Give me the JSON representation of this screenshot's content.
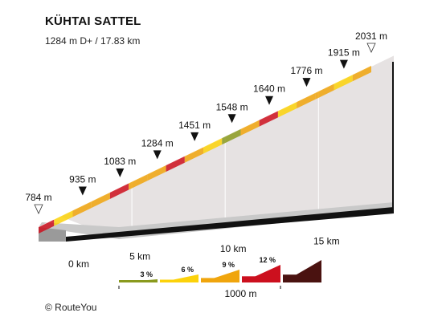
{
  "chart_data": {
    "type": "area",
    "title": "KÜHTAI SATTEL",
    "subtitle": "1284 m D+ / 17.83 km",
    "xlabel": "",
    "ylabel": "",
    "xlim": [
      0,
      17.83
    ],
    "ylim": [
      784,
      2031
    ],
    "distance_unit": "km",
    "elevation_unit": "m",
    "distance_ticks": [
      {
        "km": 0,
        "label": "0 km"
      },
      {
        "km": 5,
        "label": "5 km"
      },
      {
        "km": 10,
        "label": "10 km"
      },
      {
        "km": 15,
        "label": "15 km"
      }
    ],
    "segments": [
      {
        "km_start": 0,
        "km_end": 0.83,
        "color_class": "red"
      },
      {
        "km_start": 0.83,
        "km_end": 1.83,
        "color_class": "yellow"
      },
      {
        "km_start": 1.83,
        "km_end": 2.83,
        "color_class": "orange"
      },
      {
        "km_start": 2.83,
        "km_end": 3.83,
        "color_class": "orange"
      },
      {
        "km_start": 3.83,
        "km_end": 4.83,
        "color_class": "red"
      },
      {
        "km_start": 4.83,
        "km_end": 5.83,
        "color_class": "orange"
      },
      {
        "km_start": 5.83,
        "km_end": 6.83,
        "color_class": "orange"
      },
      {
        "km_start": 6.83,
        "km_end": 7.83,
        "color_class": "red"
      },
      {
        "km_start": 7.83,
        "km_end": 8.83,
        "color_class": "orange"
      },
      {
        "km_start": 8.83,
        "km_end": 9.83,
        "color_class": "yellow"
      },
      {
        "km_start": 9.83,
        "km_end": 10.83,
        "color_class": "green"
      },
      {
        "km_start": 10.83,
        "km_end": 11.83,
        "color_class": "orange"
      },
      {
        "km_start": 11.83,
        "km_end": 12.83,
        "color_class": "red"
      },
      {
        "km_start": 12.83,
        "km_end": 13.83,
        "color_class": "yellow"
      },
      {
        "km_start": 13.83,
        "km_end": 14.83,
        "color_class": "orange"
      },
      {
        "km_start": 14.83,
        "km_end": 15.83,
        "color_class": "orange"
      },
      {
        "km_start": 15.83,
        "km_end": 16.83,
        "color_class": "yellow"
      },
      {
        "km_start": 16.83,
        "km_end": 17.83,
        "color_class": "orange"
      }
    ],
    "markers": [
      {
        "km": 0,
        "elevation": 784,
        "label": "784 m",
        "kind": "endpoint"
      },
      {
        "km": 2.0,
        "elevation": 935,
        "label": "935 m",
        "kind": "checkpoint"
      },
      {
        "km": 4.0,
        "elevation": 1083,
        "label": "1083 m",
        "kind": "checkpoint"
      },
      {
        "km": 6.0,
        "elevation": 1284,
        "label": "1284 m",
        "kind": "checkpoint"
      },
      {
        "km": 8.0,
        "elevation": 1451,
        "label": "1451 m",
        "kind": "checkpoint"
      },
      {
        "km": 10.0,
        "elevation": 1548,
        "label": "1548 m",
        "kind": "checkpoint"
      },
      {
        "km": 12.0,
        "elevation": 1640,
        "label": "1640 m",
        "kind": "checkpoint"
      },
      {
        "km": 14.0,
        "elevation": 1776,
        "label": "1776 m",
        "kind": "checkpoint"
      },
      {
        "km": 16.0,
        "elevation": 1915,
        "label": "1915 m",
        "kind": "checkpoint"
      },
      {
        "km": 17.83,
        "elevation": 2031,
        "label": "2031 m",
        "kind": "endpoint"
      }
    ],
    "legend": {
      "items": [
        {
          "label": "3 %",
          "color_class": "green"
        },
        {
          "label": "6 %",
          "color_class": "yellow"
        },
        {
          "label": "9 %",
          "color_class": "orange"
        },
        {
          "label": "12 %",
          "color_class": "red"
        },
        {
          "label": "",
          "color_class": "darkred"
        }
      ],
      "scale_label": "1000 m"
    },
    "colors": {
      "green": "#8a9a1e",
      "yellow": "#fcd20a",
      "orange": "#f0a50d",
      "red": "#cc101e",
      "darkred": "#4a1210",
      "side_wall": "#e6e2e2",
      "base_top": "#c9c9c9",
      "base_front": "#9a9a9a"
    }
  },
  "credit": "© RouteYou"
}
